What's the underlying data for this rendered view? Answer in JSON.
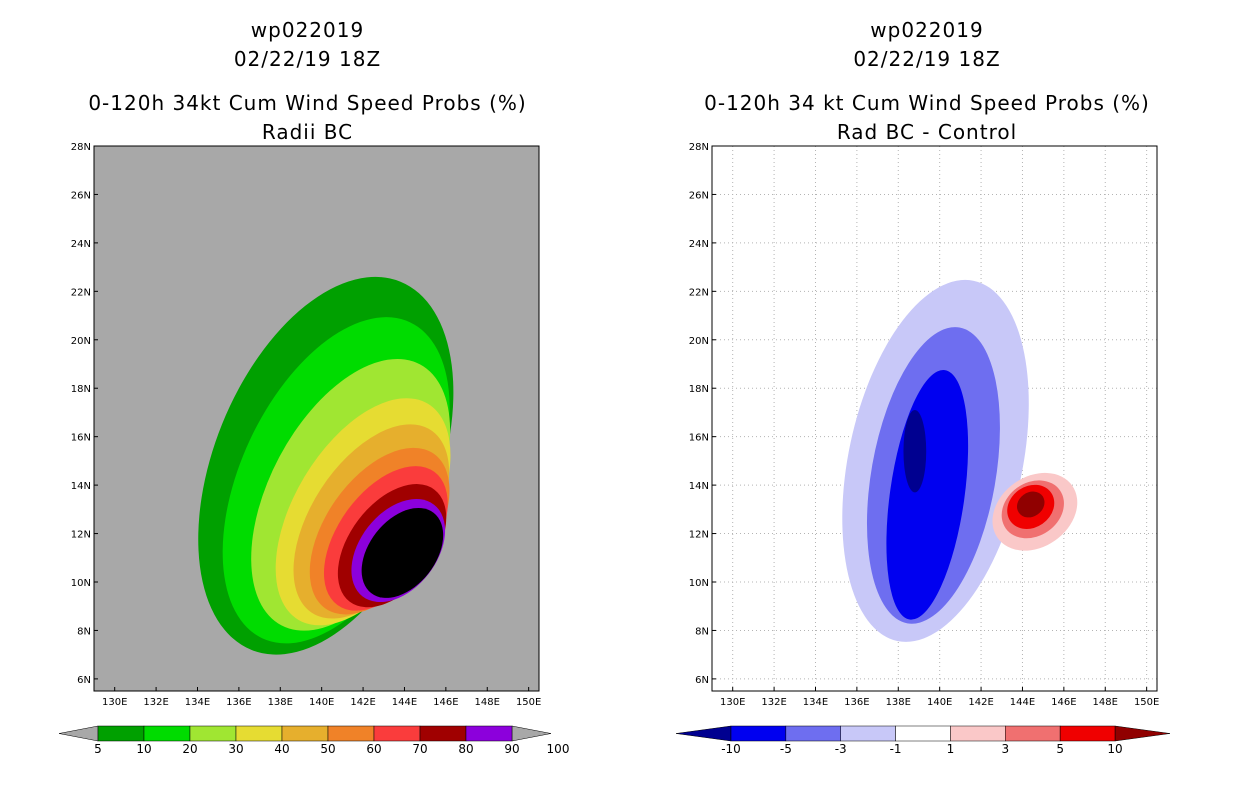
{
  "left": {
    "storm_id": "wp022019",
    "datetime": "02/22/19 18Z",
    "title_line": "0-120h 34kt Cum Wind Speed Probs (%)",
    "subtitle": "Radii BC"
  },
  "right": {
    "storm_id": "wp022019",
    "datetime": "02/22/19 18Z",
    "title_line": "0-120h 34 kt Cum Wind Speed Probs (%)",
    "subtitle": "Rad BC - Control"
  },
  "colors": {
    "land_bg": "#a8a8a8",
    "prob_fills": [
      "#00a000",
      "#00dc00",
      "#a0e632",
      "#e6dc32",
      "#e6af2d",
      "#f08228",
      "#fa3c3c",
      "#a00000",
      "#8c00dc"
    ],
    "diff_fills": [
      "#000090",
      "#0000f0",
      "#6e6ef0",
      "#c8c8f8",
      "#ffffff",
      "#fac8c8",
      "#f07070",
      "#f00000",
      "#900000"
    ]
  },
  "chart_data": [
    {
      "type": "heatmap",
      "title": "0-120h 34kt Cum Wind Speed Probs (%) Radii BC",
      "x_ticks": [
        "130E",
        "132E",
        "134E",
        "136E",
        "138E",
        "140E",
        "142E",
        "144E",
        "146E",
        "148E",
        "150E"
      ],
      "y_ticks": [
        "6N",
        "8N",
        "10N",
        "12N",
        "14N",
        "16N",
        "18N",
        "20N",
        "22N",
        "24N",
        "26N",
        "28N"
      ],
      "xlim": [
        129,
        150.5
      ],
      "ylim": [
        5.5,
        28
      ],
      "grid": false,
      "colorbar_levels": [
        "5",
        "10",
        "20",
        "30",
        "40",
        "50",
        "60",
        "70",
        "80",
        "90",
        "100"
      ],
      "contours": [
        {
          "level": 5,
          "center": [
            140.2,
            14.8
          ],
          "radii": [
            5.4,
            8.2
          ],
          "tilt": 22
        },
        {
          "level": 10,
          "center": [
            140.7,
            14.2
          ],
          "radii": [
            4.6,
            7.2
          ],
          "tilt": 25
        },
        {
          "level": 20,
          "center": [
            141.4,
            13.6
          ],
          "radii": [
            3.9,
            6.1
          ],
          "tilt": 28
        },
        {
          "level": 30,
          "center": [
            142.0,
            12.9
          ],
          "radii": [
            3.3,
            5.2
          ],
          "tilt": 31
        },
        {
          "level": 40,
          "center": [
            142.4,
            12.5
          ],
          "radii": [
            2.9,
            4.5
          ],
          "tilt": 33
        },
        {
          "level": 50,
          "center": [
            142.8,
            12.1
          ],
          "radii": [
            2.6,
            3.9
          ],
          "tilt": 35
        },
        {
          "level": 60,
          "center": [
            143.1,
            11.8
          ],
          "radii": [
            2.3,
            3.4
          ],
          "tilt": 36
        },
        {
          "level": 70,
          "center": [
            143.4,
            11.5
          ],
          "radii": [
            2.05,
            2.9
          ],
          "tilt": 37
        },
        {
          "level": 80,
          "center": [
            143.7,
            11.3
          ],
          "radii": [
            1.85,
            2.4
          ],
          "tilt": 38
        },
        {
          "level": 90,
          "center": [
            143.9,
            11.2
          ],
          "radii": [
            1.6,
            2.1
          ],
          "tilt": 38
        }
      ]
    },
    {
      "type": "heatmap",
      "title": "0-120h 34 kt Cum Wind Speed Probs (%) Rad BC - Control",
      "x_ticks": [
        "130E",
        "132E",
        "134E",
        "136E",
        "138E",
        "140E",
        "142E",
        "144E",
        "146E",
        "148E",
        "150E"
      ],
      "y_ticks": [
        "6N",
        "8N",
        "10N",
        "12N",
        "14N",
        "16N",
        "18N",
        "20N",
        "22N",
        "24N",
        "26N",
        "28N"
      ],
      "xlim": [
        129,
        150.5
      ],
      "ylim": [
        5.5,
        28
      ],
      "grid": true,
      "colorbar_levels": [
        "-10",
        "-5",
        "-3",
        "-1",
        "1",
        "3",
        "5",
        "10"
      ],
      "contours": [
        {
          "level": -1,
          "center": [
            139.8,
            15.0
          ],
          "radii": [
            4.2,
            7.6
          ],
          "tilt": 12
        },
        {
          "level": -3,
          "center": [
            139.7,
            14.4
          ],
          "radii": [
            3.0,
            6.2
          ],
          "tilt": 10
        },
        {
          "level": -5,
          "center": [
            139.4,
            13.6
          ],
          "radii": [
            1.8,
            5.2
          ],
          "tilt": 8
        },
        {
          "level": -10,
          "center": [
            138.8,
            15.4
          ],
          "radii": [
            0.55,
            1.7
          ],
          "tilt": 0
        },
        {
          "level": 1,
          "center": [
            144.6,
            12.9
          ],
          "radii": [
            2.2,
            1.45
          ],
          "tilt": -35
        },
        {
          "level": 3,
          "center": [
            144.5,
            13.0
          ],
          "radii": [
            1.6,
            1.1
          ],
          "tilt": -35
        },
        {
          "level": 5,
          "center": [
            144.4,
            13.1
          ],
          "radii": [
            1.2,
            0.85
          ],
          "tilt": -35
        },
        {
          "level": 10,
          "center": [
            144.4,
            13.2
          ],
          "radii": [
            0.7,
            0.5
          ],
          "tilt": -35
        }
      ]
    }
  ]
}
